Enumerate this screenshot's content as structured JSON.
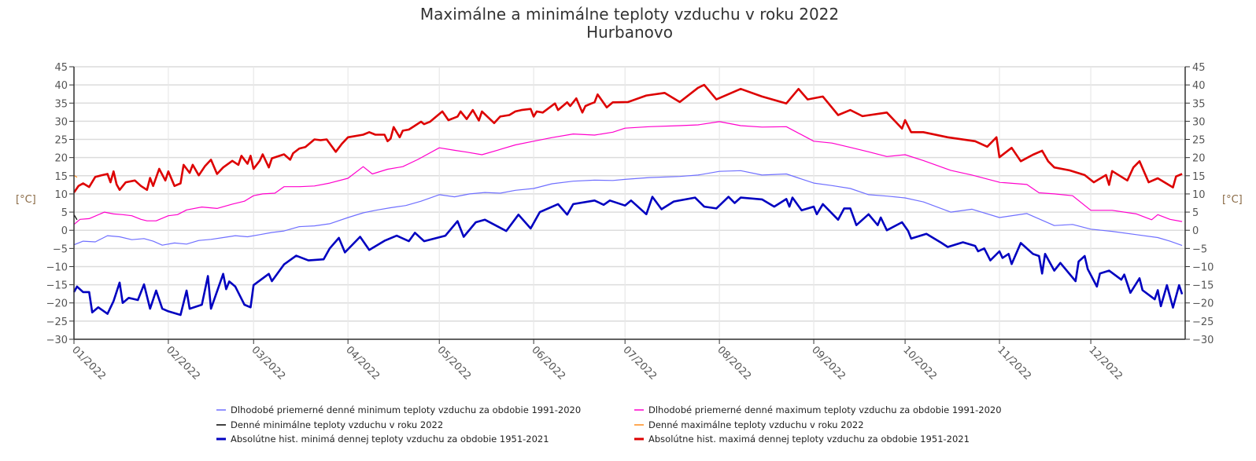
{
  "chart_data": {
    "type": "line",
    "title": "Maximálne a minimálne teploty vzduchu v roku 2022",
    "subtitle": "Hurbanovo",
    "ylabel_left": "[°C]",
    "ylabel_right": "[°C]",
    "xlabel": "",
    "ylim": [
      -30,
      45
    ],
    "yticks": [
      -30,
      -25,
      -20,
      -15,
      -10,
      -5,
      0,
      5,
      10,
      15,
      20,
      25,
      30,
      35,
      40,
      45
    ],
    "xlim_days": [
      1,
      366
    ],
    "xtick_days": [
      1,
      32,
      60,
      91,
      121,
      152,
      182,
      213,
      244,
      274,
      305,
      335
    ],
    "xtick_labels": [
      "01/2022",
      "02/2022",
      "03/2022",
      "04/2022",
      "05/2022",
      "06/2022",
      "07/2022",
      "08/2022",
      "09/2022",
      "10/2022",
      "11/2022",
      "12/2022"
    ],
    "grid": true,
    "legend_position": "bottom",
    "series": [
      {
        "name": "Dlhodobé priemerné denné minimum teploty vzduchu za obdobie 1991-2020",
        "color": "#6f6fff",
        "width": 1.2,
        "days": [
          1,
          4,
          8,
          12,
          16,
          20,
          24,
          27,
          30,
          34,
          38,
          42,
          46,
          50,
          54,
          58,
          62,
          66,
          70,
          75,
          80,
          85,
          91,
          96,
          100,
          105,
          110,
          115,
          121,
          126,
          131,
          136,
          141,
          146,
          152,
          158,
          165,
          172,
          178,
          182,
          190,
          200,
          206,
          213,
          220,
          227,
          235,
          244,
          250,
          256,
          262,
          268,
          274,
          280,
          289,
          296,
          305,
          314,
          323,
          329,
          335,
          342,
          350,
          357,
          361,
          365
        ],
        "values": [
          -4,
          -3,
          -3.2,
          -1.5,
          -1.8,
          -2.6,
          -2.3,
          -3,
          -4.1,
          -3.5,
          -3.8,
          -2.8,
          -2.5,
          -2,
          -1.5,
          -1.8,
          -1.2,
          -0.6,
          -0.2,
          1,
          1.2,
          1.8,
          3.5,
          4.8,
          5.5,
          6.2,
          6.8,
          8,
          9.8,
          9.2,
          10,
          10.4,
          10.2,
          11,
          11.5,
          12.8,
          13.5,
          13.8,
          13.7,
          14,
          14.5,
          14.8,
          15.2,
          16.2,
          16.4,
          15.2,
          15.5,
          13,
          12.3,
          11.5,
          9.8,
          9.4,
          8.9,
          7.8,
          5,
          5.8,
          3.5,
          4.6,
          1.3,
          1.6,
          0.3,
          -0.3,
          -1.2,
          -2,
          -3,
          -4.2
        ]
      },
      {
        "name": "Dlhodobé priemerné denné maximum teploty vzduchu za obdobie 1991-2020",
        "color": "#ff00cc",
        "width": 1.2,
        "days": [
          1,
          3,
          6,
          11,
          14,
          17,
          20,
          23,
          25,
          28,
          32,
          35,
          38,
          43,
          48,
          53,
          57,
          60,
          63,
          67,
          70,
          75,
          80,
          85,
          91,
          96,
          99,
          104,
          109,
          114,
          121,
          126,
          130,
          135,
          140,
          146,
          152,
          158,
          165,
          172,
          178,
          182,
          190,
          200,
          206,
          213,
          220,
          227,
          235,
          244,
          250,
          256,
          262,
          268,
          274,
          280,
          289,
          296,
          305,
          314,
          318,
          323,
          329,
          335,
          342,
          350,
          355,
          357,
          361,
          365
        ],
        "values": [
          1.6,
          3,
          3.2,
          5,
          4.5,
          4.3,
          4,
          3,
          2.6,
          2.6,
          4,
          4.3,
          5.6,
          6.4,
          6,
          7.2,
          8,
          9.5,
          10,
          10.2,
          12,
          12,
          12.2,
          13,
          14.3,
          17.5,
          15.5,
          16.8,
          17.5,
          19.5,
          22.7,
          22,
          21.5,
          20.8,
          22,
          23.5,
          24.5,
          25.5,
          26.5,
          26.2,
          27,
          28.1,
          28.5,
          28.8,
          29,
          29.9,
          28.8,
          28.4,
          28.5,
          24.5,
          24,
          22.8,
          21.6,
          20.3,
          20.8,
          19.2,
          16.5,
          15.2,
          13.2,
          12.6,
          10.3,
          10,
          9.5,
          5.5,
          5.5,
          4.5,
          2.9,
          4.3,
          3,
          2.4
        ]
      },
      {
        "name": "Denné minimálne teploty vzduchu v roku 2022",
        "color": "#000000",
        "width": 1.2,
        "days": [
          1,
          2
        ],
        "values": [
          4.3,
          2.9
        ]
      },
      {
        "name": "Denné maximálne teploty vzduchu v roku 2022",
        "color": "#ff8c1a",
        "width": 1.2,
        "days": [
          1,
          2
        ],
        "values": [
          15.1,
          14.6
        ]
      },
      {
        "name": "Absolútne hist. minimá dennej teploty vzduchu za obdobie 1951-2021",
        "color": "#0000c0",
        "width": 2.6,
        "days": [
          1,
          2,
          4,
          6,
          7,
          9,
          12,
          14,
          16,
          17,
          19,
          22,
          24,
          26,
          28,
          30,
          32,
          36,
          38,
          39,
          43,
          45,
          46,
          50,
          51,
          52,
          54,
          57,
          59,
          60,
          65,
          66,
          70,
          74,
          78,
          83,
          85,
          88,
          90,
          95,
          98,
          103,
          107,
          111,
          113,
          116,
          123,
          127,
          129,
          133,
          136,
          143,
          147,
          151,
          154,
          160,
          163,
          165,
          172,
          175,
          177,
          182,
          184,
          189,
          191,
          194,
          198,
          205,
          208,
          212,
          216,
          218,
          220,
          227,
          231,
          235,
          236,
          237,
          240,
          244,
          245,
          247,
          252,
          254,
          256,
          258,
          262,
          265,
          266,
          268,
          273,
          275,
          276,
          281,
          286,
          288,
          293,
          297,
          298,
          300,
          302,
          305,
          306,
          308,
          309,
          312,
          316,
          318,
          319,
          320,
          323,
          325,
          330,
          331,
          333,
          334,
          337,
          338,
          341,
          345,
          346,
          348,
          351,
          352,
          356,
          357,
          358,
          360,
          362,
          364,
          365
        ],
        "values": [
          -17,
          -15.5,
          -17,
          -17,
          -22.6,
          -21.2,
          -23,
          -19.5,
          -14.4,
          -20,
          -18.6,
          -19.2,
          -14.9,
          -21.6,
          -16.6,
          -21.6,
          -22.3,
          -23.3,
          -16.6,
          -21.6,
          -20.5,
          -12.6,
          -21.6,
          -12,
          -16.2,
          -14.1,
          -15.5,
          -20.5,
          -21.2,
          -15.1,
          -12,
          -14,
          -9.4,
          -7,
          -8.3,
          -8,
          -5,
          -2.1,
          -6.1,
          -1.8,
          -5.4,
          -2.9,
          -1.5,
          -3,
          -0.7,
          -3,
          -1.5,
          2.5,
          -1.8,
          2.2,
          2.9,
          -0.2,
          4.3,
          0.5,
          5,
          7.2,
          4.3,
          7.2,
          8.2,
          7,
          8.2,
          6.8,
          8.2,
          4.4,
          9.2,
          5.8,
          7.9,
          9,
          6.5,
          6,
          9.2,
          7.5,
          9,
          8.5,
          6.5,
          8.6,
          6.5,
          9,
          5.5,
          6.5,
          4.4,
          7.2,
          2.9,
          6,
          6,
          1.4,
          4.4,
          1.4,
          3.5,
          0,
          2.2,
          -0.2,
          -2.3,
          -1,
          -3.5,
          -4.6,
          -3.3,
          -4.3,
          -5.8,
          -5,
          -8.3,
          -5.8,
          -7.6,
          -6.5,
          -9.3,
          -3.5,
          -6.5,
          -7.1,
          -11.9,
          -6.5,
          -11.1,
          -9,
          -14,
          -8.6,
          -7.1,
          -10.7,
          -15.5,
          -11.9,
          -11.1,
          -13.6,
          -12.2,
          -17.2,
          -13.2,
          -16.5,
          -19,
          -16.5,
          -20.9,
          -15.1,
          -21.3,
          -15.1,
          -17.6
        ]
      },
      {
        "name": "Absolútne hist. maximá dennej teploty vzduchu za obdobie 1951-2021",
        "color": "#dd0000",
        "width": 2.6,
        "days": [
          1,
          2.5,
          4,
          6,
          8,
          10,
          12,
          13,
          14,
          15,
          16,
          18,
          21,
          23,
          25,
          26,
          27,
          29,
          31,
          32,
          34,
          36,
          37,
          39,
          40,
          42,
          44,
          46,
          48,
          50,
          53,
          55,
          56,
          58,
          59,
          60,
          62,
          63,
          65,
          66,
          70,
          72,
          73,
          75,
          77,
          80,
          82,
          84,
          87,
          89,
          91,
          96,
          98,
          100,
          103,
          104,
          105,
          106,
          108,
          109,
          111,
          113,
          115,
          116,
          118,
          122,
          124,
          127,
          128,
          130,
          132,
          134,
          135,
          139,
          141,
          144,
          146,
          148,
          151,
          152,
          153,
          155,
          159,
          160,
          163,
          164,
          166,
          168,
          169,
          171,
          172,
          173,
          176,
          178,
          183,
          189,
          195,
          200,
          206,
          208,
          212,
          220,
          227,
          235,
          239,
          242,
          247,
          252,
          256,
          260,
          268,
          273,
          274,
          276,
          280,
          288,
          297,
          301,
          304,
          305,
          309,
          312,
          316,
          319,
          321,
          323,
          328,
          333,
          336,
          340,
          341,
          342,
          347,
          349,
          351,
          354,
          357,
          362,
          363,
          365
        ],
        "values": [
          10.4,
          12.2,
          12.9,
          11.9,
          14.7,
          15.1,
          15.5,
          13.2,
          16.2,
          12.6,
          11.1,
          13.2,
          13.7,
          12.2,
          11.1,
          14.4,
          12.2,
          16.9,
          13.7,
          16.2,
          12.2,
          12.9,
          18,
          15.8,
          18,
          15.1,
          17.6,
          19.4,
          15.5,
          17.3,
          19.1,
          18,
          20.5,
          18.3,
          20.5,
          16.9,
          19.1,
          20.9,
          17.3,
          19.8,
          20.9,
          19.4,
          21.2,
          22.5,
          22.9,
          25,
          24.8,
          25,
          21.6,
          23.8,
          25.6,
          26.3,
          27,
          26.3,
          26.3,
          24.5,
          25.2,
          28.4,
          25.6,
          27.4,
          27.7,
          28.8,
          29.9,
          29.2,
          29.9,
          32.7,
          30.3,
          31.3,
          32.7,
          30.6,
          33.1,
          30.2,
          32.7,
          29.5,
          31.3,
          31.7,
          32.7,
          33.1,
          33.4,
          31.3,
          32.7,
          32.4,
          34.9,
          33.1,
          35.2,
          34.2,
          36.3,
          32.4,
          34.2,
          34.9,
          35.2,
          37.4,
          33.8,
          35.2,
          35.3,
          37.1,
          37.8,
          35.3,
          39.2,
          40,
          36,
          38.9,
          36.8,
          34.9,
          38.9,
          36,
          36.8,
          31.7,
          33.1,
          31.4,
          32.4,
          28,
          30.3,
          27,
          27,
          25.6,
          24.5,
          23,
          25.6,
          20.1,
          22.7,
          19,
          20.8,
          21.9,
          19,
          17.3,
          16.5,
          15.2,
          13.2,
          15.2,
          12.5,
          16.3,
          13.7,
          17.3,
          19,
          13.2,
          14.3,
          11.8,
          14.8,
          15.5
        ]
      }
    ]
  }
}
